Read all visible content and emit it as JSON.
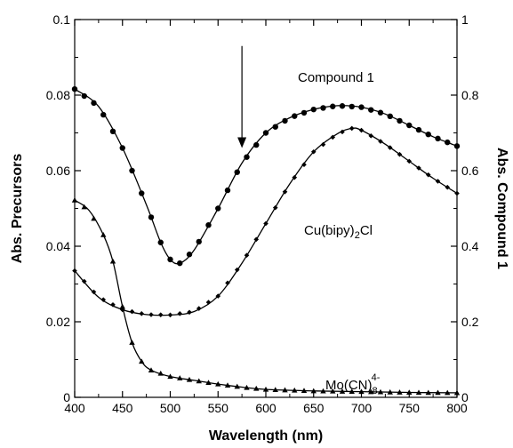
{
  "chart_data": {
    "type": "line",
    "title": "",
    "xlabel": "Wavelength (nm)",
    "ylabel_left": "Abs. Precursors",
    "ylabel_right": "Abs. Compound 1",
    "xlim": [
      400,
      800
    ],
    "ylim_left": [
      0,
      0.1
    ],
    "ylim_right": [
      0,
      1
    ],
    "xticks": [
      400,
      450,
      500,
      550,
      600,
      650,
      700,
      750,
      800
    ],
    "xtick_labels": [
      "400",
      "450",
      "500",
      "550",
      "600",
      "650",
      "700",
      "750",
      "800"
    ],
    "yticks_left": [
      0,
      0.02,
      0.04,
      0.06,
      0.08,
      0.1
    ],
    "ytick_labels_left": [
      "0",
      "0.02",
      "0.04",
      "0.06",
      "0.08",
      "0.1"
    ],
    "yticks_right": [
      0,
      0.2,
      0.4,
      0.6,
      0.8,
      1
    ],
    "ytick_labels_right": [
      "0",
      "0.2",
      "0.4",
      "0.6",
      "0.8",
      "1"
    ],
    "grid": false,
    "arrow_annotation": {
      "x": 575,
      "y_from": 0.093,
      "y_to": 0.066
    },
    "series": [
      {
        "label": "Compound 1",
        "marker": "circle",
        "axis": "right",
        "points": [
          [
            400,
            0.816
          ],
          [
            425,
            0.77
          ],
          [
            450,
            0.66
          ],
          [
            475,
            0.51
          ],
          [
            490,
            0.41
          ],
          [
            500,
            0.365
          ],
          [
            510,
            0.355
          ],
          [
            525,
            0.39
          ],
          [
            550,
            0.5
          ],
          [
            575,
            0.62
          ],
          [
            600,
            0.7
          ],
          [
            625,
            0.74
          ],
          [
            650,
            0.762
          ],
          [
            675,
            0.772
          ],
          [
            700,
            0.768
          ],
          [
            725,
            0.75
          ],
          [
            750,
            0.72
          ],
          [
            775,
            0.69
          ],
          [
            800,
            0.665
          ]
        ]
      },
      {
        "label": "Cu(bipy)2Cl",
        "label_parts": [
          "Cu(bipy)",
          "2",
          "Cl"
        ],
        "marker": "diamond",
        "axis": "left",
        "points": [
          [
            400,
            0.0335
          ],
          [
            425,
            0.0265
          ],
          [
            450,
            0.0232
          ],
          [
            475,
            0.0219
          ],
          [
            500,
            0.0218
          ],
          [
            525,
            0.0227
          ],
          [
            550,
            0.0268
          ],
          [
            575,
            0.0355
          ],
          [
            600,
            0.046
          ],
          [
            625,
            0.0565
          ],
          [
            650,
            0.065
          ],
          [
            675,
            0.0698
          ],
          [
            690,
            0.0712
          ],
          [
            700,
            0.0707
          ],
          [
            725,
            0.067
          ],
          [
            750,
            0.0625
          ],
          [
            775,
            0.058
          ],
          [
            800,
            0.054
          ]
        ]
      },
      {
        "label": "Mo(CN)8 4-",
        "label_parts": [
          "Mo(CN)",
          "8",
          "4-"
        ],
        "marker": "triangle",
        "axis": "left",
        "points": [
          [
            400,
            0.0522
          ],
          [
            415,
            0.0495
          ],
          [
            430,
            0.043
          ],
          [
            440,
            0.036
          ],
          [
            450,
            0.024
          ],
          [
            460,
            0.0145
          ],
          [
            470,
            0.0095
          ],
          [
            480,
            0.0072
          ],
          [
            500,
            0.0055
          ],
          [
            525,
            0.0045
          ],
          [
            550,
            0.0035
          ],
          [
            575,
            0.0027
          ],
          [
            600,
            0.0021
          ],
          [
            650,
            0.0017
          ],
          [
            700,
            0.0015
          ],
          [
            750,
            0.0013
          ],
          [
            800,
            0.0012
          ]
        ]
      }
    ]
  }
}
